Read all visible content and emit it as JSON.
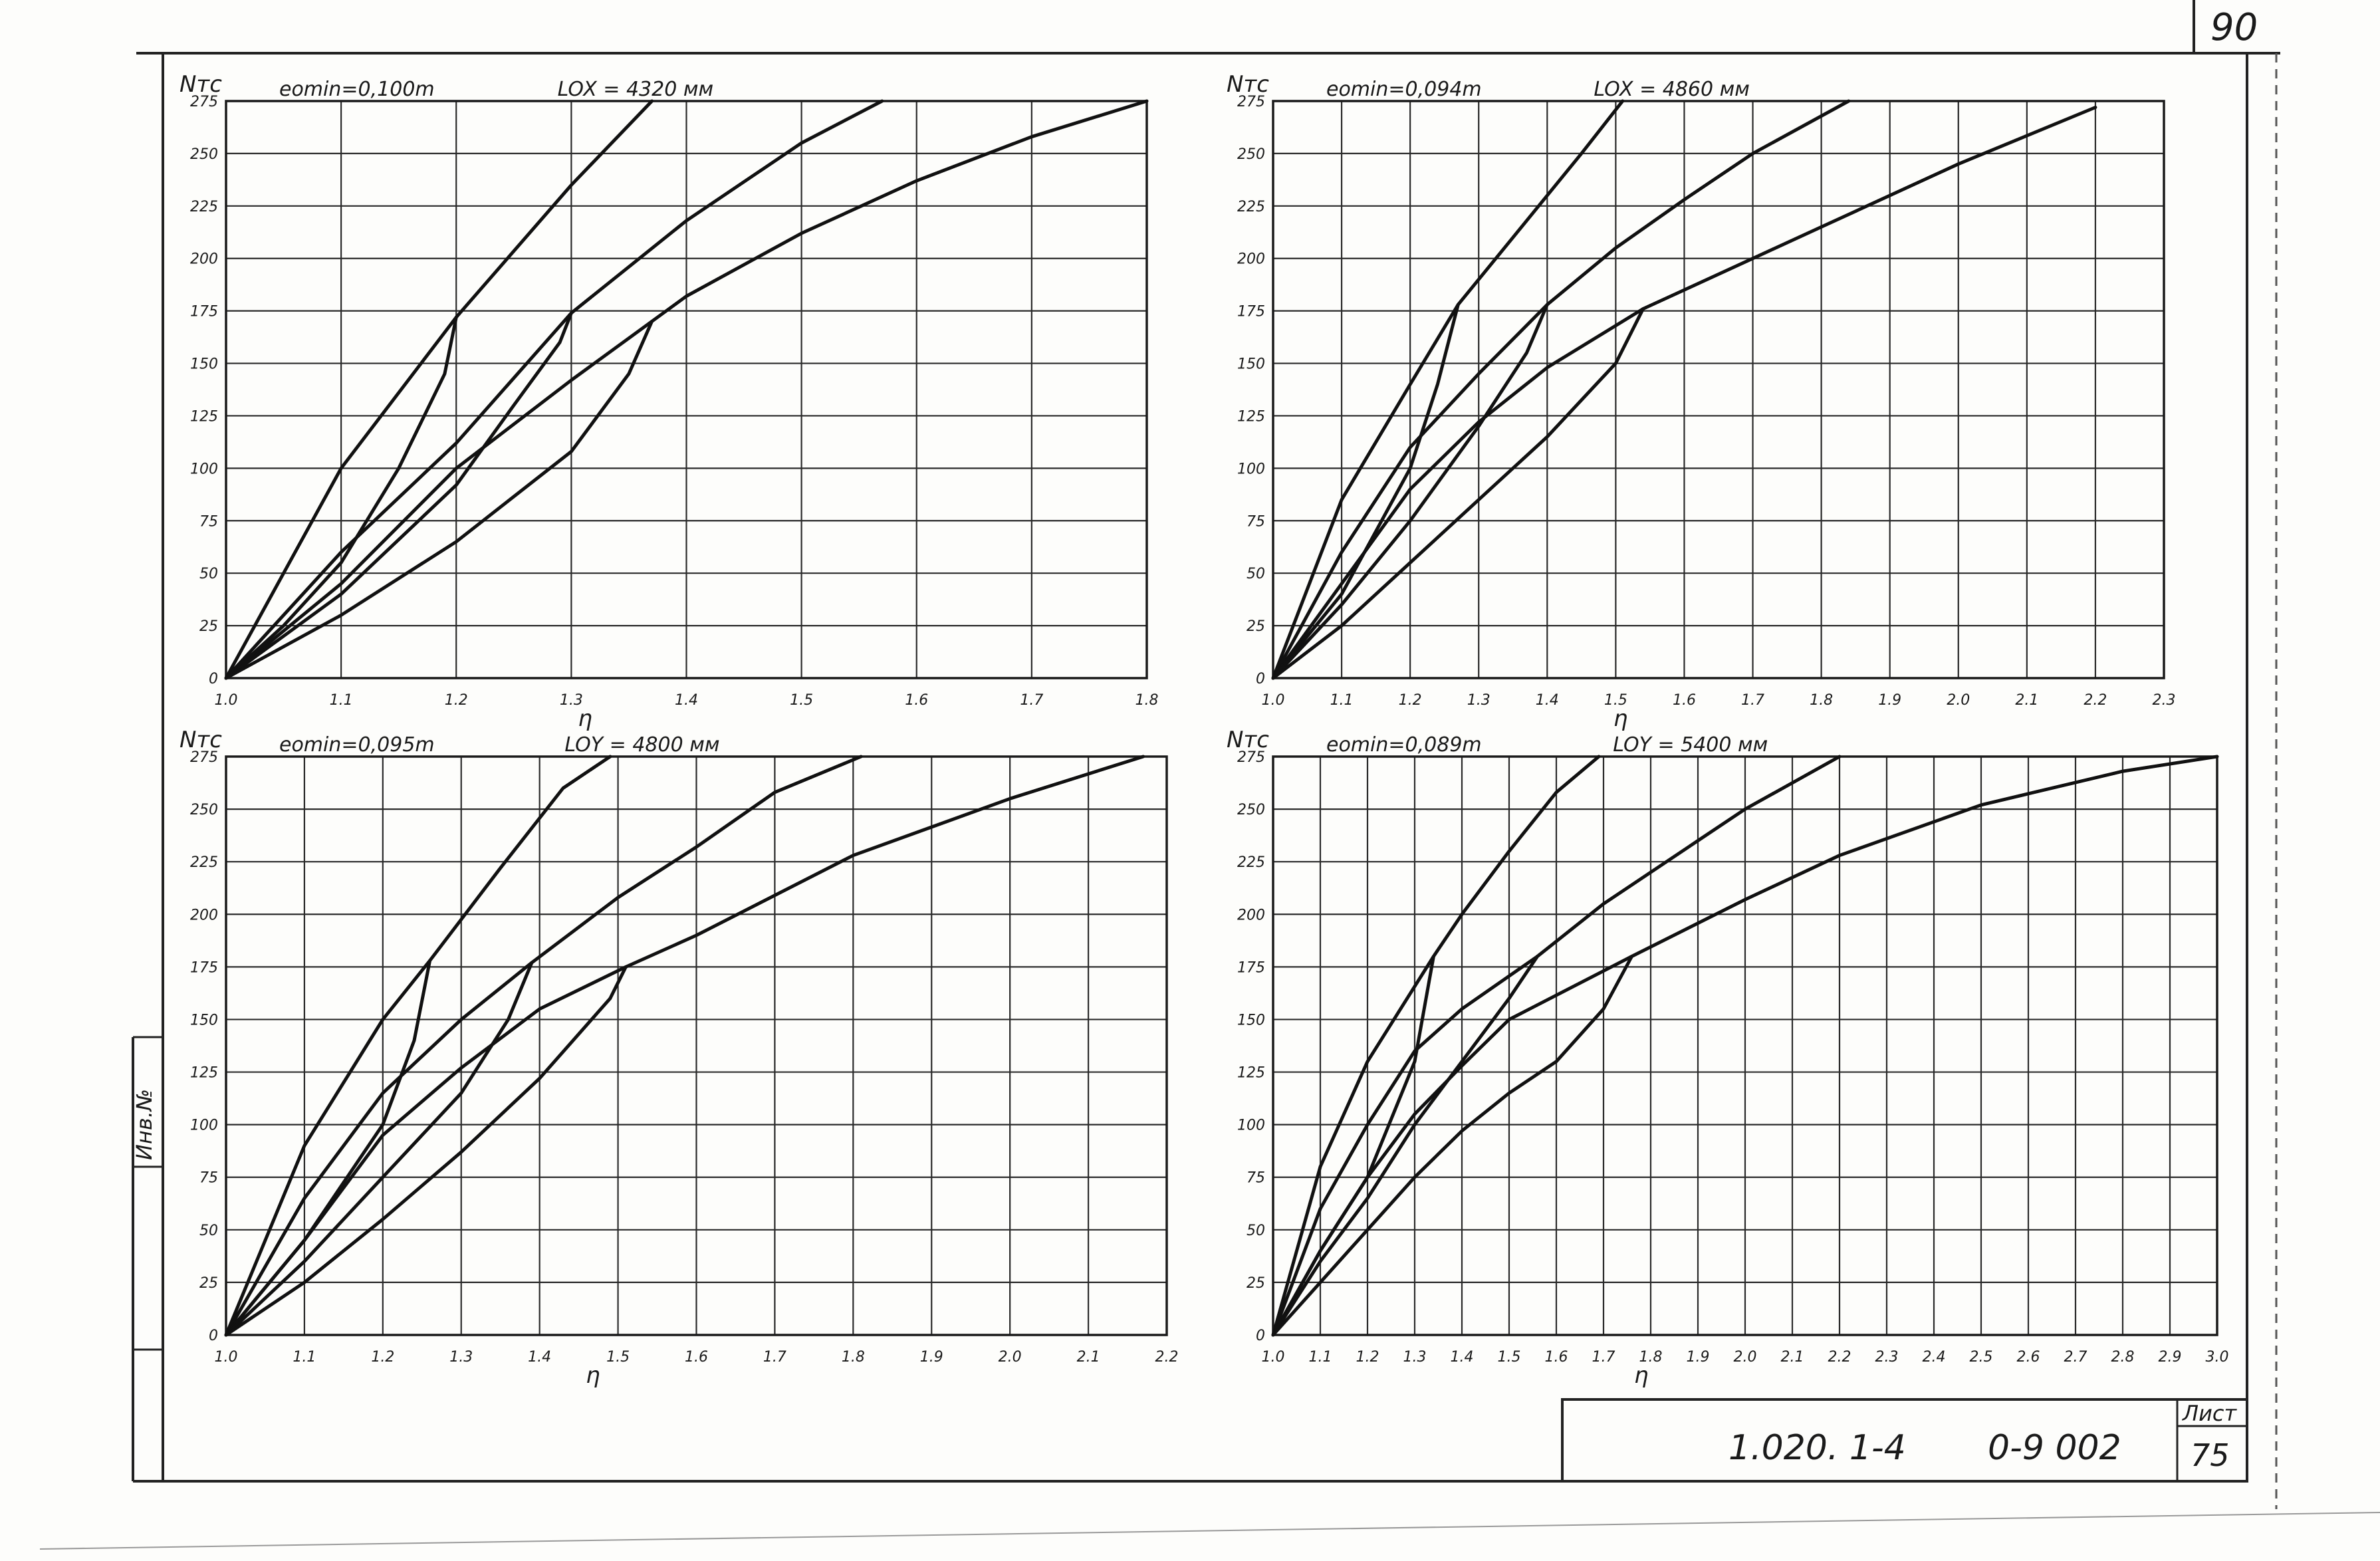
{
  "sheet": {
    "page_marker": "90",
    "side_stamp": "Инв.№",
    "title_block": {
      "code": "1.020. 1-4",
      "series": "0-9 002",
      "sheet_label": "Лист",
      "sheet_number": "75"
    }
  },
  "chart_data": [
    {
      "type": "line",
      "panel": "top-left",
      "ylabel": "Nтс",
      "xlabel": "η",
      "param_e": "eomin=0,100m",
      "param_l": "LOX = 4320 мм",
      "xlim": [
        1.0,
        1.8
      ],
      "ylim": [
        0,
        275
      ],
      "xticks": [
        "1.0",
        "1.1",
        "1.2",
        "1.3",
        "1.4",
        "1.5",
        "1.6",
        "1.7",
        "1.8"
      ],
      "yticks": [
        "0",
        "25",
        "50",
        "75",
        "100",
        "125",
        "150",
        "175",
        "200",
        "225",
        "250",
        "275"
      ],
      "series": [
        {
          "x": [
            1.0,
            1.1,
            1.2,
            1.3,
            1.37
          ],
          "y": [
            0,
            100,
            172,
            235,
            275
          ]
        },
        {
          "x": [
            1.0,
            1.1,
            1.2,
            1.3,
            1.4,
            1.5,
            1.57
          ],
          "y": [
            0,
            60,
            112,
            174,
            218,
            255,
            275
          ]
        },
        {
          "x": [
            1.0,
            1.1,
            1.2,
            1.3,
            1.37,
            1.4,
            1.5,
            1.6,
            1.7,
            1.8
          ],
          "y": [
            0,
            45,
            100,
            142,
            170,
            182,
            212,
            237,
            258,
            275
          ]
        },
        {
          "x": [
            1.0,
            1.05,
            1.1,
            1.15,
            1.19,
            1.2
          ],
          "y": [
            0,
            25,
            55,
            100,
            145,
            172
          ]
        },
        {
          "x": [
            1.0,
            1.1,
            1.2,
            1.25,
            1.29,
            1.3
          ],
          "y": [
            0,
            40,
            92,
            130,
            160,
            174
          ]
        },
        {
          "x": [
            1.0,
            1.1,
            1.2,
            1.3,
            1.35,
            1.37
          ],
          "y": [
            0,
            30,
            65,
            108,
            145,
            170
          ]
        }
      ]
    },
    {
      "type": "line",
      "panel": "top-right",
      "ylabel": "Nтс",
      "xlabel": "η",
      "param_e": "eomin=0,094m",
      "param_l": "LOX = 4860 мм",
      "xlim": [
        1.0,
        2.3
      ],
      "ylim": [
        0,
        275
      ],
      "xticks": [
        "1.0",
        "1.1",
        "1.2",
        "1.3",
        "1.4",
        "1.5",
        "1.6",
        "1.7",
        "1.8",
        "1.9",
        "2.0",
        "2.1",
        "2.2",
        "2.3"
      ],
      "yticks": [
        "0",
        "25",
        "50",
        "75",
        "100",
        "125",
        "150",
        "175",
        "200",
        "225",
        "250",
        "275"
      ],
      "series": [
        {
          "x": [
            1.0,
            1.1,
            1.2,
            1.27,
            1.35,
            1.45,
            1.51
          ],
          "y": [
            0,
            85,
            140,
            178,
            210,
            250,
            275
          ]
        },
        {
          "x": [
            1.0,
            1.1,
            1.2,
            1.3,
            1.4,
            1.5,
            1.6,
            1.7,
            1.84
          ],
          "y": [
            0,
            60,
            110,
            145,
            178,
            205,
            228,
            250,
            275
          ]
        },
        {
          "x": [
            1.0,
            1.1,
            1.2,
            1.3,
            1.4,
            1.54,
            1.6,
            1.8,
            2.0,
            2.2
          ],
          "y": [
            0,
            45,
            90,
            122,
            148,
            176,
            185,
            215,
            245,
            272
          ]
        },
        {
          "x": [
            1.0,
            1.1,
            1.2,
            1.24,
            1.27
          ],
          "y": [
            0,
            40,
            100,
            140,
            178
          ]
        },
        {
          "x": [
            1.0,
            1.1,
            1.2,
            1.3,
            1.37,
            1.4
          ],
          "y": [
            0,
            35,
            75,
            120,
            155,
            178
          ]
        },
        {
          "x": [
            1.0,
            1.1,
            1.2,
            1.3,
            1.4,
            1.5,
            1.54
          ],
          "y": [
            0,
            25,
            55,
            85,
            115,
            150,
            176
          ]
        }
      ]
    },
    {
      "type": "line",
      "panel": "bottom-left",
      "ylabel": "Nтс",
      "xlabel": "η",
      "param_e": "eomin=0,095m",
      "param_l": "LOY = 4800 мм",
      "xlim": [
        1.0,
        2.2
      ],
      "ylim": [
        0,
        275
      ],
      "xticks": [
        "1.0",
        "1.1",
        "1.2",
        "1.3",
        "1.4",
        "1.5",
        "1.6",
        "1.7",
        "1.8",
        "1.9",
        "2.0",
        "2.1",
        "2.2"
      ],
      "yticks": [
        "0",
        "25",
        "50",
        "75",
        "100",
        "125",
        "150",
        "175",
        "200",
        "225",
        "250",
        "275"
      ],
      "series": [
        {
          "x": [
            1.0,
            1.1,
            1.2,
            1.26,
            1.35,
            1.43,
            1.49
          ],
          "y": [
            0,
            90,
            150,
            178,
            222,
            260,
            275
          ]
        },
        {
          "x": [
            1.0,
            1.1,
            1.2,
            1.3,
            1.39,
            1.5,
            1.6,
            1.7,
            1.81
          ],
          "y": [
            0,
            65,
            115,
            150,
            177,
            208,
            232,
            258,
            275
          ]
        },
        {
          "x": [
            1.0,
            1.1,
            1.2,
            1.3,
            1.4,
            1.51,
            1.6,
            1.8,
            2.0,
            2.17
          ],
          "y": [
            0,
            45,
            95,
            127,
            155,
            175,
            190,
            228,
            255,
            275
          ]
        },
        {
          "x": [
            1.0,
            1.1,
            1.2,
            1.24,
            1.26
          ],
          "y": [
            0,
            45,
            100,
            140,
            178
          ]
        },
        {
          "x": [
            1.0,
            1.1,
            1.2,
            1.3,
            1.36,
            1.39
          ],
          "y": [
            0,
            35,
            75,
            115,
            150,
            177
          ]
        },
        {
          "x": [
            1.0,
            1.1,
            1.2,
            1.3,
            1.4,
            1.49,
            1.51
          ],
          "y": [
            0,
            25,
            55,
            87,
            122,
            160,
            175
          ]
        }
      ]
    },
    {
      "type": "line",
      "panel": "bottom-right",
      "ylabel": "Nтс",
      "xlabel": "η",
      "param_e": "eomin=0,089m",
      "param_l": "LOY = 5400 мм",
      "xlim": [
        1.0,
        3.0
      ],
      "ylim": [
        0,
        275
      ],
      "xticks": [
        "1.0",
        "1.1",
        "1.2",
        "1.3",
        "1.4",
        "1.5",
        "1.6",
        "1.7",
        "1.8",
        "1.9",
        "2.0",
        "2.1",
        "2.2",
        "2.3",
        "2.4",
        "2.5",
        "2.6",
        "2.7",
        "2.8",
        "2.9",
        "3.0"
      ],
      "yticks": [
        "0",
        "25",
        "50",
        "75",
        "100",
        "125",
        "150",
        "175",
        "200",
        "225",
        "250",
        "275"
      ],
      "series": [
        {
          "x": [
            1.0,
            1.1,
            1.2,
            1.34,
            1.4,
            1.5,
            1.6,
            1.69
          ],
          "y": [
            0,
            80,
            130,
            180,
            200,
            230,
            258,
            275
          ]
        },
        {
          "x": [
            1.0,
            1.1,
            1.2,
            1.3,
            1.4,
            1.56,
            1.7,
            1.9,
            2.0,
            2.2
          ],
          "y": [
            0,
            60,
            100,
            135,
            155,
            180,
            205,
            235,
            250,
            275
          ]
        },
        {
          "x": [
            1.0,
            1.1,
            1.2,
            1.3,
            1.4,
            1.5,
            1.76,
            2.0,
            2.2,
            2.5,
            2.8,
            3.0
          ],
          "y": [
            0,
            40,
            75,
            105,
            128,
            150,
            180,
            207,
            228,
            252,
            268,
            275
          ]
        },
        {
          "x": [
            1.0,
            1.1,
            1.2,
            1.3,
            1.34
          ],
          "y": [
            0,
            40,
            75,
            130,
            180
          ]
        },
        {
          "x": [
            1.0,
            1.1,
            1.2,
            1.3,
            1.4,
            1.5,
            1.56
          ],
          "y": [
            0,
            35,
            65,
            100,
            130,
            160,
            180
          ]
        },
        {
          "x": [
            1.0,
            1.1,
            1.2,
            1.3,
            1.4,
            1.5,
            1.6,
            1.7,
            1.76
          ],
          "y": [
            0,
            25,
            50,
            75,
            97,
            115,
            130,
            155,
            180
          ]
        }
      ]
    }
  ]
}
